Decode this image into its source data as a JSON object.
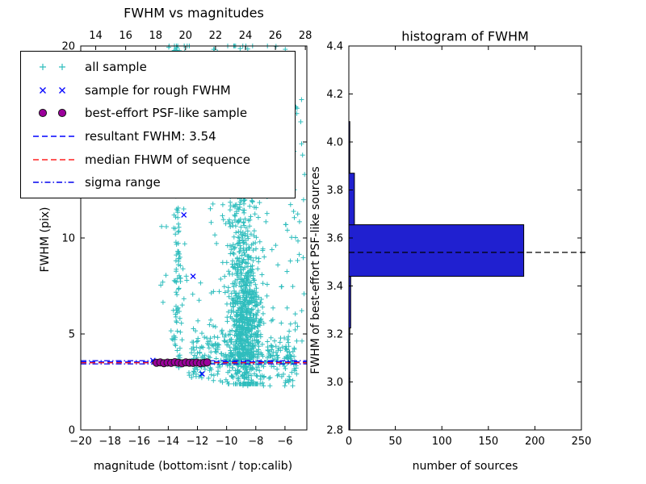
{
  "figure": {
    "background": "#ffffff"
  },
  "colors": {
    "all_sample": "#2fbdbd",
    "rough_sample": "#0000ff",
    "psf_sample": "#9b009b",
    "psf_edge": "#1a1a1a",
    "resultant_line": "#0000ff",
    "median_line": "#ff2020",
    "sigma_line": "#0000ee",
    "hist_bar": "#2020d0",
    "hist_median": "#000000"
  },
  "legend": {
    "items": [
      {
        "label": "all sample",
        "type": "plus",
        "color": "#2fbdbd"
      },
      {
        "label": "sample for rough FWHM",
        "type": "x",
        "color": "#0000ff"
      },
      {
        "label": "best-effort PSF-like sample",
        "type": "circle",
        "color": "#9b009b"
      },
      {
        "label": "resultant FWHM: 3.54",
        "type": "dashed",
        "color": "#0000ff"
      },
      {
        "label": "median FHWM of sequence",
        "type": "dashed",
        "color": "#ff2020"
      },
      {
        "label": "sigma range",
        "type": "dashdot",
        "color": "#0000ee"
      }
    ]
  },
  "chart_data": [
    {
      "type": "scatter",
      "title": "FWHM vs magnitudes",
      "xlabel": "magnitude (bottom:isnt / top:calib)",
      "ylabel": "FWHM (pix)",
      "xlim": [
        -20,
        -4.5
      ],
      "x2lim": [
        13,
        28.1
      ],
      "ylim": [
        0,
        20
      ],
      "seed": 20,
      "xticks": [
        {
          "v": -20,
          "label": "−20"
        },
        {
          "v": -18,
          "label": "−18"
        },
        {
          "v": -16,
          "label": "−16"
        },
        {
          "v": -14,
          "label": "−14"
        },
        {
          "v": -12,
          "label": "−12"
        },
        {
          "v": -10,
          "label": "−10"
        },
        {
          "v": -8,
          "label": "−8"
        },
        {
          "v": -6,
          "label": "−6"
        }
      ],
      "x2ticks": [
        {
          "v": 14,
          "label": "14"
        },
        {
          "v": 16,
          "label": "16"
        },
        {
          "v": 18,
          "label": "18"
        },
        {
          "v": 20,
          "label": "20"
        },
        {
          "v": 22,
          "label": "22"
        },
        {
          "v": 24,
          "label": "24"
        },
        {
          "v": 26,
          "label": "26"
        },
        {
          "v": 28,
          "label": "28"
        }
      ],
      "yticks": [
        {
          "v": 0,
          "label": "0"
        },
        {
          "v": 5,
          "label": "5"
        },
        {
          "v": 10,
          "label": "10"
        },
        {
          "v": 15,
          "label": "15"
        },
        {
          "v": 20,
          "label": "20"
        }
      ],
      "series": [
        {
          "name": "all sample",
          "marker": "plus",
          "color": "#2fbdbd",
          "clusters": [
            {
              "n": 650,
              "x": [
                "n",
                -8.75,
                0.5
              ],
              "y": [
                "n",
                5.3,
                2.0
              ],
              "yclamp": [
                2.4,
                20
              ]
            },
            {
              "n": 280,
              "x": [
                "n",
                -8.9,
                0.65
              ],
              "y": [
                "n",
                11.5,
                3.2
              ],
              "yclamp": [
                2.5,
                20
              ]
            },
            {
              "n": 320,
              "x": [
                "u",
                -12.6,
                -5.3
              ],
              "y": [
                "n",
                3.7,
                0.65
              ],
              "yclamp": [
                2.3,
                5.8
              ]
            },
            {
              "n": 130,
              "x": [
                "n",
                -13.35,
                0.12
              ],
              "y": [
                "u",
                3.0,
                20
              ]
            },
            {
              "n": 110,
              "x": [
                "u",
                -14.6,
                -9.6
              ],
              "y": [
                "u",
                4.5,
                20
              ]
            },
            {
              "n": 70,
              "x": [
                "u",
                -14.0,
                -5.4
              ],
              "y": [
                "n",
                19.3,
                0.9
              ],
              "yclamp": [
                17.5,
                20
              ]
            },
            {
              "n": 45,
              "x": [
                "u",
                -8.2,
                -5.2
              ],
              "y": [
                "u",
                3.0,
                13.0
              ]
            },
            {
              "n": 30,
              "x": [
                "u",
                -5.4,
                -4.6
              ],
              "y": [
                "u",
                2.5,
                19.5
              ]
            }
          ]
        },
        {
          "name": "sample for rough FWHM",
          "marker": "x",
          "color": "#0000ff",
          "points": [
            [
              -15.05,
              3.62
            ],
            [
              -14.6,
              3.55
            ],
            [
              -13.6,
              3.5
            ],
            [
              -12.93,
              11.2
            ],
            [
              -12.6,
              3.58
            ],
            [
              -12.3,
              8.0
            ],
            [
              -11.68,
              2.92
            ]
          ]
        },
        {
          "name": "best-effort PSF-like sample",
          "marker": "circle",
          "color": "#9b009b",
          "edge": "#1a1a1a",
          "points": [
            [
              -14.8,
              3.5
            ],
            [
              -14.55,
              3.52
            ],
            [
              -14.3,
              3.48
            ],
            [
              -14.05,
              3.51
            ],
            [
              -13.8,
              3.49
            ],
            [
              -13.55,
              3.53
            ],
            [
              -13.3,
              3.5
            ],
            [
              -13.05,
              3.47
            ],
            [
              -12.8,
              3.52
            ],
            [
              -12.55,
              3.5
            ],
            [
              -12.3,
              3.49
            ],
            [
              -12.05,
              3.51
            ],
            [
              -11.8,
              3.48
            ],
            [
              -11.55,
              3.5
            ],
            [
              -11.33,
              3.52
            ]
          ]
        }
      ],
      "lines": [
        {
          "label": "sigma range upper",
          "y": 3.61,
          "style": "dashdot",
          "color": "#0000ee"
        },
        {
          "label": "sigma range lower",
          "y": 3.44,
          "style": "dashdot",
          "color": "#0000ee"
        },
        {
          "label": "resultant FWHM",
          "y": 3.54,
          "value": 3.54,
          "style": "dashed",
          "color": "#0000ff"
        },
        {
          "label": "median FHWM of sequence",
          "y": 3.5,
          "style": "dashed",
          "color": "#ff2020"
        }
      ]
    },
    {
      "type": "bar-horizontal",
      "title": "histogram of FWHM",
      "xlabel": "number of sources",
      "ylabel": "FWHM of best-effort PSF-like sources",
      "xlim": [
        0,
        250
      ],
      "ylim": [
        2.8,
        4.4
      ],
      "xticks": [
        {
          "v": 0,
          "label": "0"
        },
        {
          "v": 50,
          "label": "50"
        },
        {
          "v": 100,
          "label": "100"
        },
        {
          "v": 150,
          "label": "150"
        },
        {
          "v": 200,
          "label": "200"
        },
        {
          "v": 250,
          "label": "250"
        }
      ],
      "yticks": [
        {
          "v": 2.8,
          "label": "2.8"
        },
        {
          "v": 3.0,
          "label": "3.0"
        },
        {
          "v": 3.2,
          "label": "3.2"
        },
        {
          "v": 3.4,
          "label": "3.4"
        },
        {
          "v": 3.6,
          "label": "3.6"
        },
        {
          "v": 3.8,
          "label": "3.8"
        },
        {
          "v": 4.0,
          "label": "4.0"
        },
        {
          "v": 4.2,
          "label": "4.2"
        },
        {
          "v": 4.4,
          "label": "4.4"
        }
      ],
      "bins": [
        {
          "y0": 2.8,
          "y1": 3.015,
          "count": 1
        },
        {
          "y0": 3.015,
          "y1": 3.225,
          "count": 1
        },
        {
          "y0": 3.225,
          "y1": 3.44,
          "count": 2
        },
        {
          "y0": 3.44,
          "y1": 3.655,
          "count": 188
        },
        {
          "y0": 3.655,
          "y1": 3.87,
          "count": 6
        },
        {
          "y0": 3.87,
          "y1": 4.085,
          "count": 1
        }
      ],
      "bar_color": "#2020d0",
      "median_line": {
        "y": 3.54,
        "style": "dashed",
        "color": "#000000"
      }
    }
  ]
}
